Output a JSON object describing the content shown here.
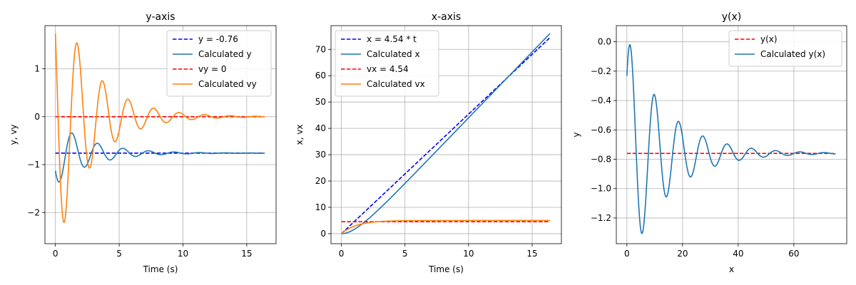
{
  "chart_data": [
    {
      "type": "line",
      "title": "y-axis",
      "xlabel": "Time (s)",
      "ylabel": "y, vy",
      "xlim": [
        -0.82,
        17.3
      ],
      "ylim": [
        -2.65,
        1.9
      ],
      "xticks": [
        0,
        5,
        10,
        15
      ],
      "xtick_labels": [
        "0",
        "5",
        "10",
        "15"
      ],
      "yticks": [
        -2,
        -1,
        0,
        1
      ],
      "ytick_labels": [
        "−2",
        "−1",
        "0",
        "1"
      ],
      "grid": true,
      "legend_placement": "upper-right",
      "series": [
        {
          "name": "y = -0.76",
          "color": "#0000ff",
          "dash": true,
          "type": "constant",
          "value": -0.76,
          "x_range": [
            0,
            16.4
          ]
        },
        {
          "name": "Calculated y",
          "color": "#1f77b4",
          "dash": false,
          "type": "damped",
          "offset": -0.76,
          "amp": -0.67,
          "omega": 3.14,
          "phase": -0.99,
          "decay": 0.36,
          "x_range": [
            0,
            16.4
          ]
        },
        {
          "name": "vy = 0",
          "color": "#ff0000",
          "dash": true,
          "type": "constant",
          "value": 0,
          "x_range": [
            0,
            16.4
          ]
        },
        {
          "name": "Calculated vy",
          "color": "#ff7f0e",
          "dash": false,
          "type": "damped",
          "offset": 0,
          "amp": 2.83,
          "omega": 3.14,
          "phase": 0.91,
          "decay": 0.36,
          "x_range": [
            0,
            16.4
          ]
        }
      ]
    },
    {
      "type": "line",
      "title": "x-axis",
      "xlabel": "Time (s)",
      "ylabel": "x, vx",
      "xlim": [
        -0.82,
        17.3
      ],
      "ylim": [
        -3.8,
        79
      ],
      "xticks": [
        0,
        5,
        10,
        15
      ],
      "xtick_labels": [
        "0",
        "5",
        "10",
        "15"
      ],
      "yticks": [
        0,
        10,
        20,
        30,
        40,
        50,
        60,
        70
      ],
      "ytick_labels": [
        "0",
        "10",
        "20",
        "30",
        "40",
        "50",
        "60",
        "70"
      ],
      "grid": true,
      "legend_placement": "upper-left",
      "series": [
        {
          "name": "x = 4.54 * t",
          "color": "#0000ff",
          "dash": true,
          "type": "linear",
          "slope": 4.54,
          "x_range": [
            0,
            16.4
          ]
        },
        {
          "name": "Calculated x",
          "color": "#1f77b4",
          "dash": false,
          "type": "xpos",
          "vmax": 5.0,
          "tau": 1.2,
          "x_range": [
            0,
            16.4
          ]
        },
        {
          "name": "vx = 4.54",
          "color": "#ff0000",
          "dash": true,
          "type": "constant",
          "value": 4.54,
          "x_range": [
            0,
            16.4
          ]
        },
        {
          "name": "Calculated vx",
          "color": "#ff7f0e",
          "dash": false,
          "type": "xvel",
          "vmax": 5.0,
          "tau": 1.2,
          "x_range": [
            0,
            16.4
          ]
        }
      ]
    },
    {
      "type": "line",
      "title": "y(x)",
      "xlabel": "x",
      "ylabel": "y",
      "xlim": [
        -3.8,
        79
      ],
      "ylim": [
        -1.375,
        0.11
      ],
      "xticks": [
        0,
        20,
        40,
        60
      ],
      "xtick_labels": [
        "0",
        "20",
        "40",
        "60"
      ],
      "yticks": [
        -1.2,
        -1.0,
        -0.8,
        -0.6,
        -0.4,
        -0.2,
        0.0
      ],
      "ytick_labels": [
        "−1.2",
        "−1.0",
        "−0.8",
        "−0.6",
        "−0.4",
        "−0.2",
        "0.0"
      ],
      "grid": true,
      "legend_placement": "upper-right",
      "series": [
        {
          "name": "y(x)",
          "color": "#ff0000",
          "dash": true,
          "type": "constant",
          "value": -0.76,
          "x_range": [
            0,
            75
          ]
        },
        {
          "name": "Calculated y(x)",
          "color": "#1f77b4",
          "dash": false,
          "type": "yx",
          "offset": -0.76,
          "amp": 0.8,
          "omega": 0.72,
          "phase": -0.85,
          "decay": 0.07,
          "x_range": [
            0,
            75
          ]
        }
      ]
    }
  ]
}
